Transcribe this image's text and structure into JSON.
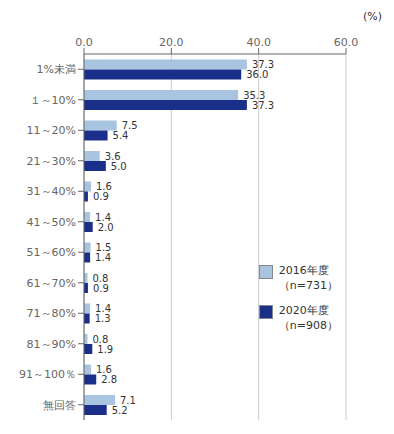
{
  "chart_data": {
    "type": "bar",
    "orientation": "horizontal",
    "categories": [
      "1%未満",
      "１～10%",
      "11～20%",
      "21～30%",
      "31～40%",
      "41～50%",
      "51～60%",
      "61～70%",
      "71～80%",
      "81～90%",
      "91～100％",
      "無回答"
    ],
    "series": [
      {
        "name": "2016年度\n（n=731）",
        "color": "#a8c4e0",
        "values": [
          37.3,
          35.3,
          7.5,
          3.6,
          1.6,
          1.4,
          1.5,
          0.8,
          1.4,
          0.8,
          1.6,
          7.1
        ],
        "value_labels": [
          "37.3",
          "35.3",
          "7.5",
          "3.6",
          "1.6",
          "1.4",
          "1.5",
          "0.8",
          "1.4",
          "0.8",
          "1.6",
          "7.1"
        ]
      },
      {
        "name": "2020年度\n（n=908）",
        "color": "#1a2f8a",
        "values": [
          36.0,
          37.3,
          5.4,
          5.0,
          0.9,
          2.0,
          1.4,
          0.9,
          1.3,
          1.9,
          2.8,
          5.2
        ],
        "value_labels": [
          "36.0",
          "37.3",
          "5.4",
          "5.0",
          "0.9",
          "2.0",
          "1.4",
          "0.9",
          "1.3",
          "1.9",
          "2.8",
          "5.2"
        ]
      }
    ],
    "xlim": [
      0,
      60
    ],
    "xticks": [
      {
        "value": 0,
        "label": "0.0"
      },
      {
        "value": 20,
        "label": "20.0"
      },
      {
        "value": 40,
        "label": "40.0"
      },
      {
        "value": 60,
        "label": "60.0"
      }
    ],
    "annotations": [
      "(%)"
    ],
    "grid": true,
    "legend": "right",
    "data_labels": true
  }
}
